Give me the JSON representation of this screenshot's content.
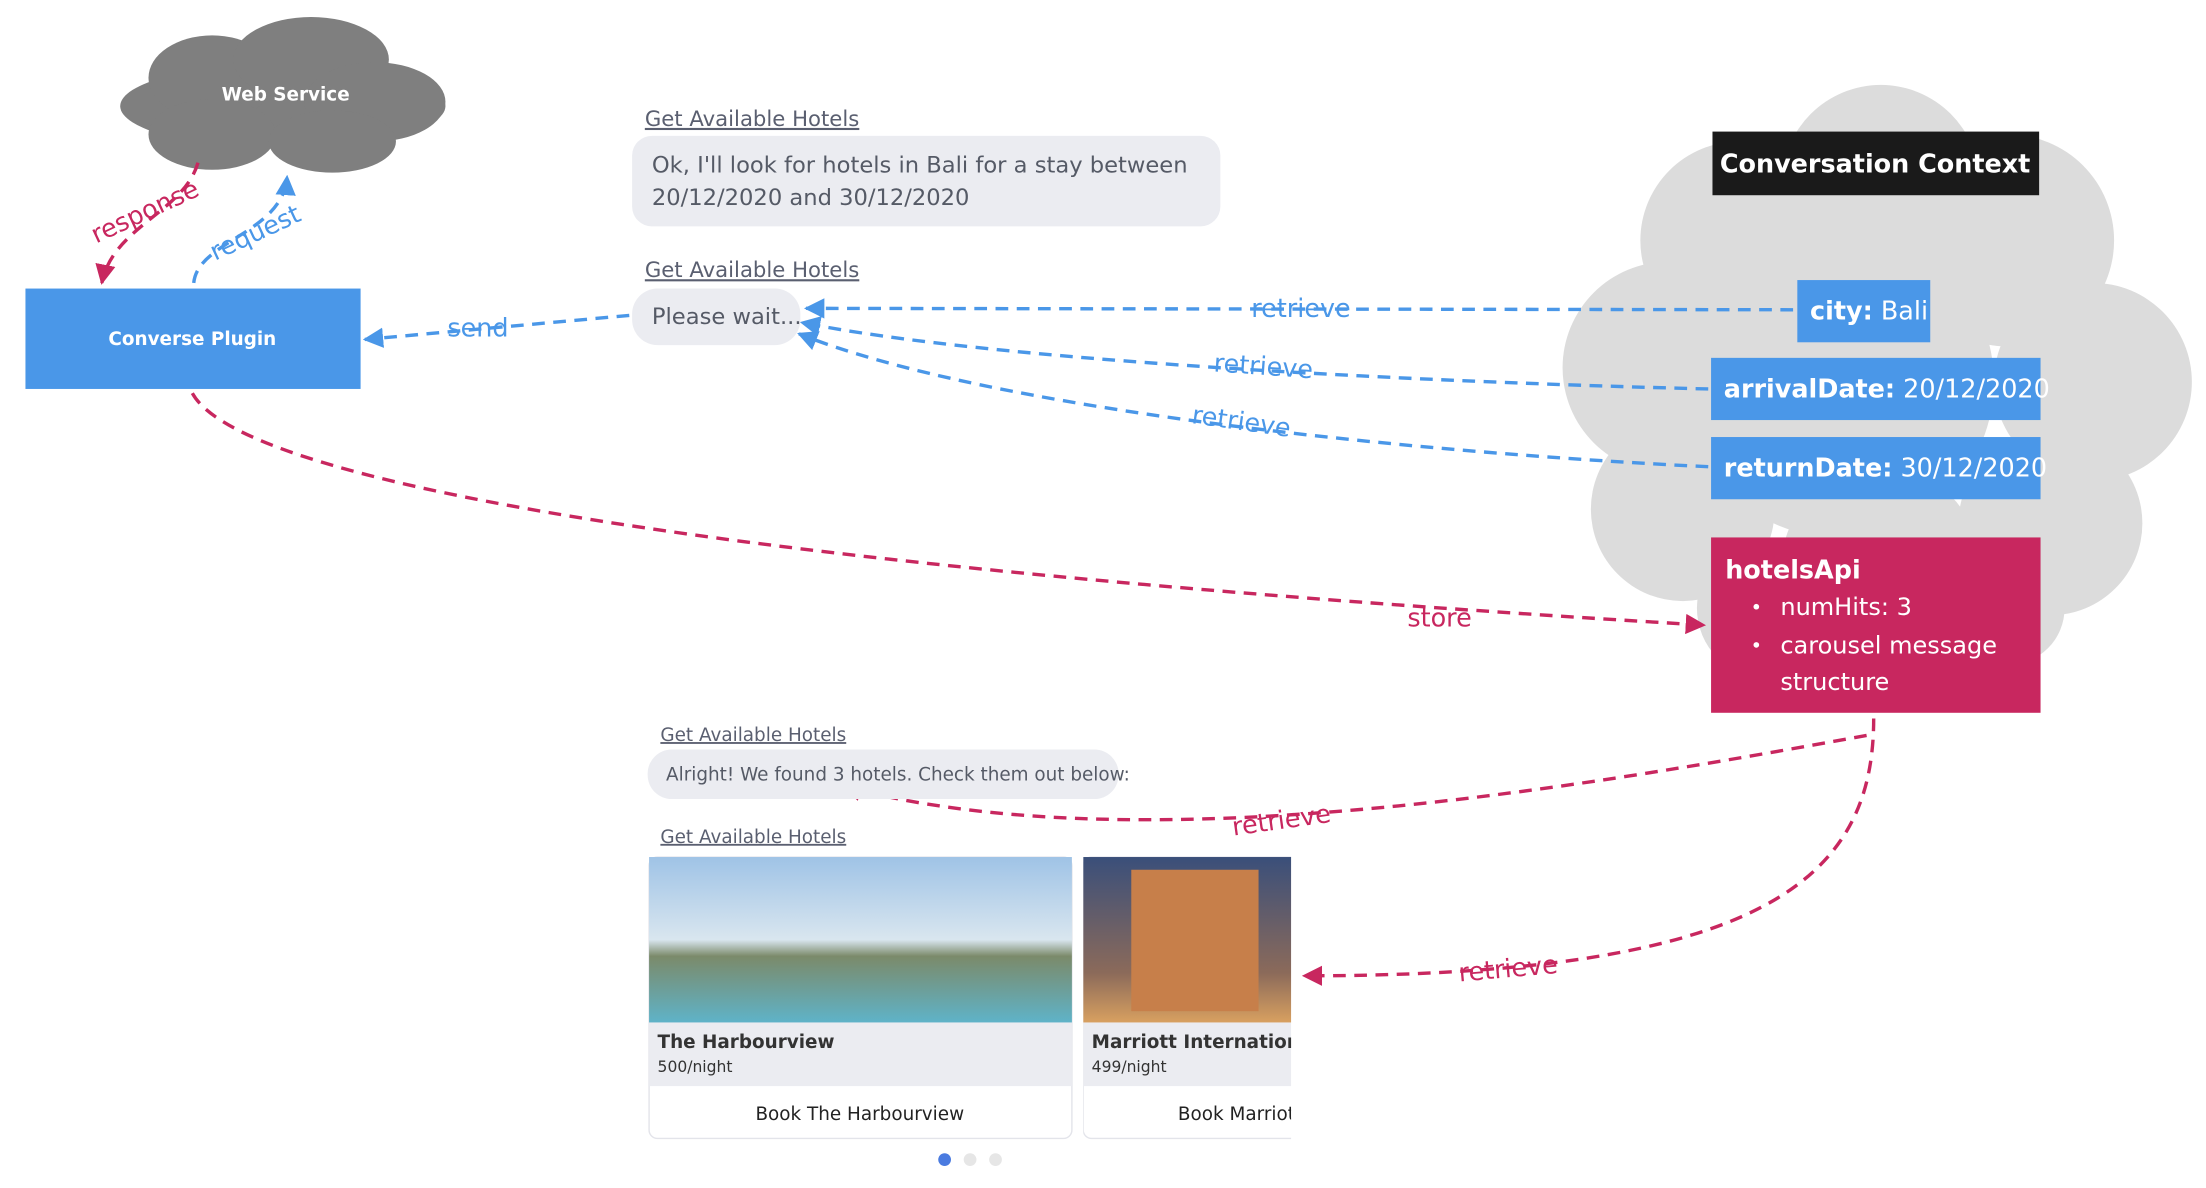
{
  "web_service": {
    "label": "Web Service"
  },
  "plugin": {
    "label": "Converse Plugin"
  },
  "edges": [
    {
      "label": "response"
    },
    {
      "label": "request"
    },
    {
      "label": "send"
    },
    {
      "label": "retrieve"
    },
    {
      "label": "retrieve"
    },
    {
      "label": "retrieve"
    },
    {
      "label": "store"
    },
    {
      "label": "retrieve"
    },
    {
      "label": "retrieve"
    }
  ],
  "messages": [
    {
      "intent": "Get Available Hotels",
      "lines": [
        "Ok, I'll look for hotels in Bali for a stay between",
        "20/12/2020 and 30/12/2020"
      ]
    },
    {
      "intent": "Get Available Hotels",
      "lines": [
        "Please wait..."
      ]
    },
    {
      "intent": "Get Available Hotels",
      "lines": [
        "Alright! We found 3 hotels. Check them out below:"
      ]
    },
    {
      "intent": "Get Available Hotels"
    }
  ],
  "context": {
    "title": "Conversation Context",
    "variables": [
      {
        "key": "city:",
        "value": "Bali"
      },
      {
        "key": "arrivalDate:",
        "value": "20/12/2020"
      },
      {
        "key": "returnDate:",
        "value": "30/12/2020"
      }
    ],
    "api": {
      "name": "hotelsApi",
      "items": [
        [
          "numHits: 3"
        ],
        [
          "carousel message",
          "structure"
        ]
      ]
    }
  },
  "carousel": {
    "cards": [
      {
        "title": "The Harbourview",
        "price": "500/night",
        "button": "Book The Harbourview"
      },
      {
        "title": "Marriott International",
        "price": "499/night",
        "button": "Book Marriot"
      }
    ]
  }
}
